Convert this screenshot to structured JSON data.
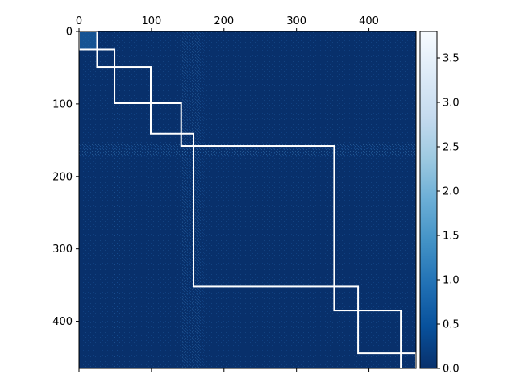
{
  "chart_data": {
    "type": "heatmap",
    "title": "",
    "xlabel": "",
    "ylabel": "",
    "xlim": [
      0,
      465
    ],
    "ylim": [
      465,
      0
    ],
    "x_axis_position": "top",
    "x_ticks": [
      0,
      100,
      200,
      300,
      400
    ],
    "y_ticks": [
      0,
      100,
      200,
      300,
      400
    ],
    "colormap": "Blues_r",
    "colormap_stops": [
      "#08306b",
      "#08519c",
      "#2171b5",
      "#4292c6",
      "#6baed6",
      "#9ecae1",
      "#c6dbef",
      "#deebf7",
      "#f7fbff"
    ],
    "background_value_color": "#08306b",
    "colorbar": {
      "range": [
        0.0,
        3.8
      ],
      "ticks": [
        0.0,
        0.5,
        1.0,
        1.5,
        2.0,
        2.5,
        3.0,
        3.5
      ],
      "tick_labels": [
        "0.0",
        "0.5",
        "1.0",
        "1.5",
        "2.0",
        "2.5",
        "3.0",
        "3.5"
      ],
      "placement": "right"
    },
    "cluster_boundaries": [
      0,
      25,
      49,
      99,
      141,
      158,
      352,
      385,
      444,
      465
    ],
    "cluster_outline_color": "#ffffff"
  }
}
